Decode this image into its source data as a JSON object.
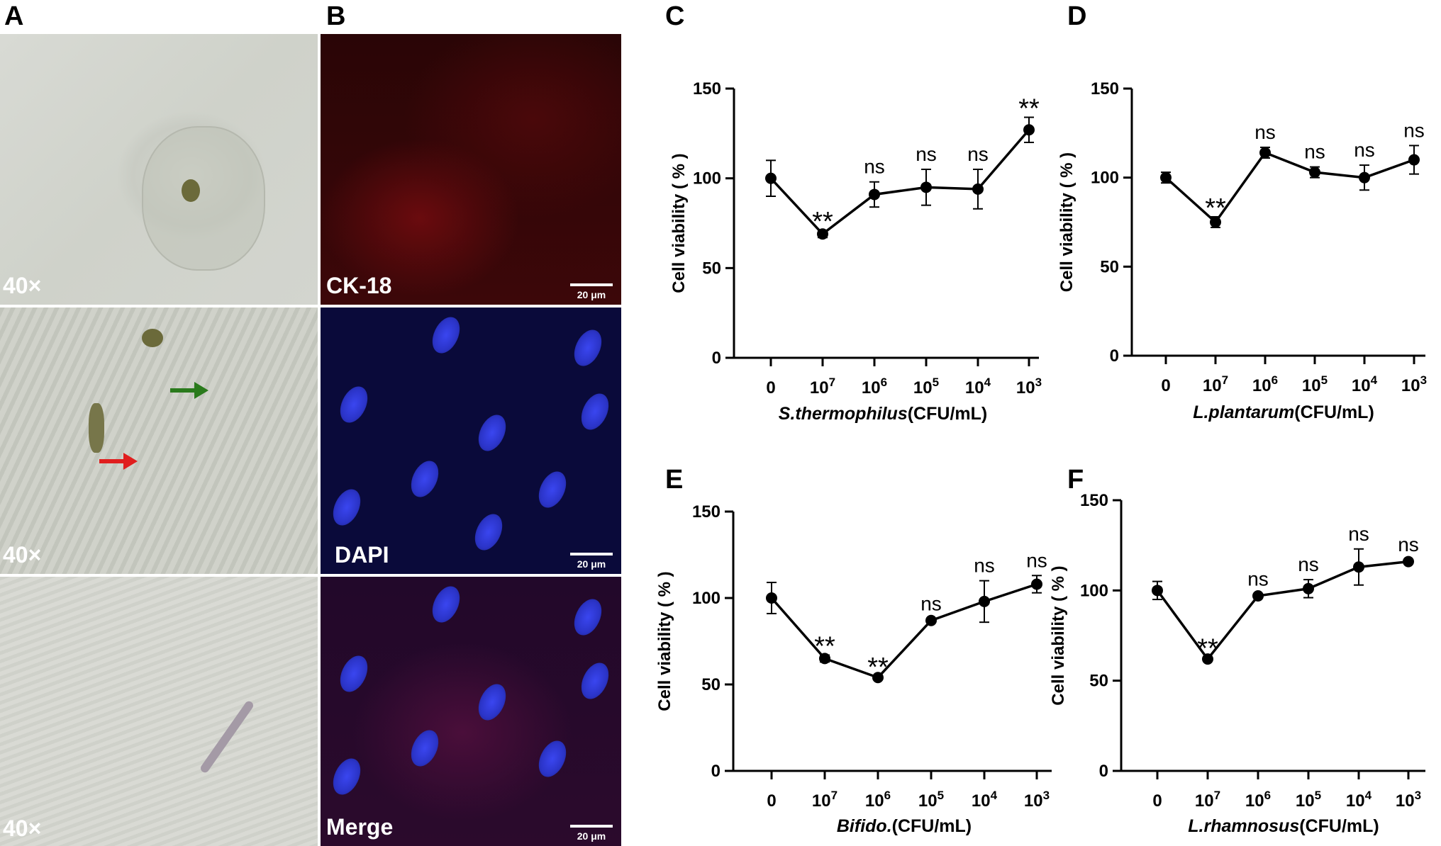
{
  "panels": {
    "A": "A",
    "B": "B",
    "C": "C",
    "D": "D",
    "E": "E",
    "F": "F"
  },
  "micro": {
    "mag1": "40×",
    "mag2": "40×",
    "mag3": "40×",
    "stain1": "CK-18",
    "stain2": "DAPI",
    "stain3": "Merge",
    "scale": "20 μm"
  },
  "colors": {
    "red_arrow": "#e01e1e",
    "green_arrow": "#2a7a1c"
  },
  "chart_data": [
    {
      "panel": "C",
      "type": "line",
      "categories": [
        "0",
        "10^7",
        "10^6",
        "10^5",
        "10^4",
        "10^3"
      ],
      "values": [
        100,
        69,
        91,
        95,
        94,
        127
      ],
      "errors": [
        10,
        2,
        7,
        10,
        11,
        7
      ],
      "annotations": [
        "",
        "**",
        "ns",
        "ns",
        "ns",
        "**"
      ],
      "xlabel_species": "S.thermophilus",
      "xlabel_unit": "(CFU/mL)",
      "ylabel": "Cell viability ( % )",
      "ylim": [
        0,
        150
      ],
      "yticks": [
        "0",
        "50",
        "100",
        "150"
      ]
    },
    {
      "panel": "D",
      "type": "line",
      "categories": [
        "0",
        "10^7",
        "10^6",
        "10^5",
        "10^4",
        "10^3"
      ],
      "values": [
        100,
        75,
        114,
        103,
        100,
        110
      ],
      "errors": [
        3,
        3,
        3,
        3,
        7,
        8
      ],
      "annotations": [
        "",
        "**",
        "ns",
        "ns",
        "ns",
        "ns"
      ],
      "xlabel_species": "L.plantarum",
      "xlabel_unit": "(CFU/mL)",
      "ylabel": "Cell viability ( % )",
      "ylim": [
        0,
        150
      ],
      "yticks": [
        "0",
        "50",
        "100",
        "150"
      ]
    },
    {
      "panel": "E",
      "type": "line",
      "categories": [
        "0",
        "10^7",
        "10^6",
        "10^5",
        "10^4",
        "10^3"
      ],
      "values": [
        100,
        65,
        54,
        87,
        98,
        108
      ],
      "errors": [
        9,
        2,
        1,
        1,
        12,
        5
      ],
      "annotations": [
        "",
        "**",
        "**",
        "ns",
        "ns",
        "ns"
      ],
      "xlabel_species": "Bifido.",
      "xlabel_unit": "(CFU/mL)",
      "ylabel": "Cell viability ( % )",
      "ylim": [
        0,
        150
      ],
      "yticks": [
        "0",
        "50",
        "100",
        "150"
      ]
    },
    {
      "panel": "F",
      "type": "line",
      "categories": [
        "0",
        "10^7",
        "10^6",
        "10^5",
        "10^4",
        "10^3"
      ],
      "values": [
        100,
        62,
        97,
        101,
        113,
        116
      ],
      "errors": [
        5,
        1,
        1,
        5,
        10,
        1
      ],
      "annotations": [
        "",
        "**",
        "ns",
        "ns",
        "ns",
        "ns"
      ],
      "xlabel_species": "L.rhamnosus",
      "xlabel_unit": "(CFU/mL)",
      "ylabel": "Cell viability ( % )",
      "ylim": [
        0,
        150
      ],
      "yticks": [
        "0",
        "50",
        "100",
        "150"
      ]
    }
  ]
}
